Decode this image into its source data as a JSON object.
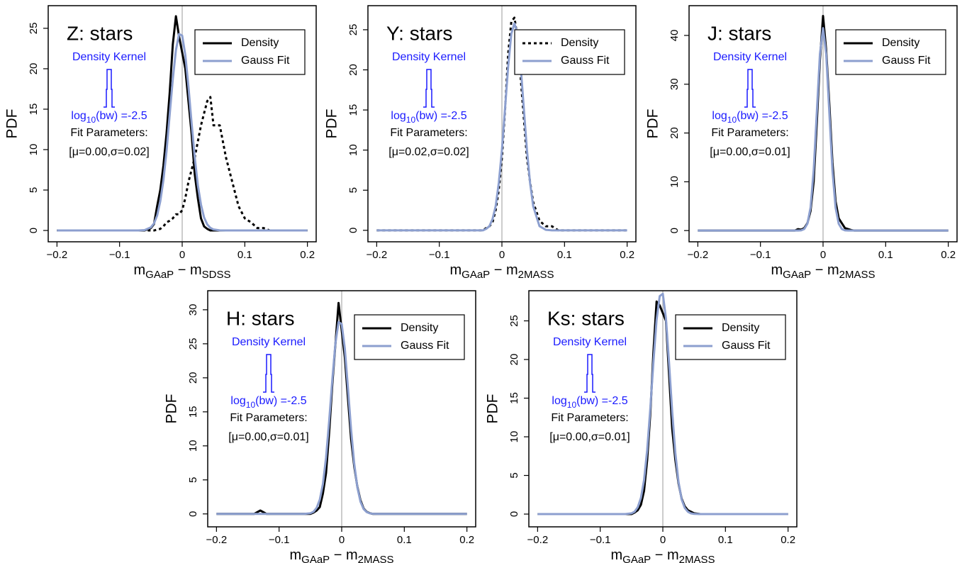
{
  "chart_data": [
    {
      "type": "line",
      "title": "Z: stars",
      "y_label": "PDF",
      "x_label": [
        {
          "text": "m"
        },
        {
          "text": "GAaP",
          "sub": true
        },
        {
          "text": " − m"
        },
        {
          "text": "SDSS",
          "sub": true
        }
      ],
      "xlim": [
        -0.214,
        0.214
      ],
      "ylim": [
        -1.4,
        27.8
      ],
      "xticks": [
        {
          "value": -0.2,
          "label": "−0.2"
        },
        {
          "value": -0.1,
          "label": "−0.1"
        },
        0,
        0.1,
        0.2
      ],
      "yticks": [
        0,
        5,
        10,
        15,
        20,
        25
      ],
      "reference_line_x": 0,
      "reference_color": "#bbbbbb",
      "annotations": {
        "kernel_label": "Density Kernel",
        "bandwidth": [
          {
            "text": "log"
          },
          {
            "text": "10",
            "sub": true
          },
          {
            "text": "(bw) =-2.5"
          }
        ],
        "fit_label": "Fit Parameters:",
        "fit_params": "[μ=0.00,σ=0.02]",
        "kernel_color": "#1a1aff"
      },
      "x": [
        -0.2,
        -0.14,
        -0.13,
        -0.12,
        -0.08,
        -0.07,
        -0.06,
        -0.05,
        -0.045,
        -0.04,
        -0.035,
        -0.03,
        -0.025,
        -0.02,
        -0.015,
        -0.01,
        -0.005,
        0,
        0.005,
        0.01,
        0.015,
        0.02,
        0.025,
        0.03,
        0.035,
        0.04,
        0.045,
        0.05,
        0.06,
        0.07,
        0.08,
        0.09,
        0.1,
        0.11,
        0.12,
        0.13,
        0.14,
        0.2
      ],
      "series": [
        {
          "values": [
            0,
            0,
            0,
            0,
            0,
            0,
            0,
            0,
            0,
            0.1,
            0.2,
            0.5,
            1,
            1.2,
            1.5,
            2,
            2,
            2.5,
            4,
            6,
            7.5,
            9,
            11,
            13,
            14.5,
            16,
            16.5,
            13,
            13,
            9,
            6,
            3,
            1.5,
            1,
            0.3,
            0.3,
            0,
            0
          ],
          "color": "#000000",
          "dash": true
        },
        {
          "name": "Density",
          "color": "#000000",
          "values": [
            0,
            0,
            0,
            0,
            0,
            0,
            0,
            0.3,
            0.8,
            3,
            5,
            8,
            12,
            17,
            23,
            26.5,
            24,
            22,
            20,
            16,
            12,
            7,
            4,
            1.5,
            0.5,
            0.2,
            0,
            0,
            0,
            0,
            0,
            0,
            0,
            0,
            0,
            0,
            0,
            0
          ]
        },
        {
          "name": "Gauss Fit",
          "color": "#8c9fcf",
          "values": [
            0,
            0,
            0,
            0,
            0,
            0,
            0.05,
            0.39,
            0.88,
            1.85,
            3.6,
            6.2,
            9.8,
            14.3,
            18.7,
            22.3,
            24.3,
            24.1,
            21.7,
            17.8,
            13.3,
            9.1,
            5.6,
            3.2,
            1.6,
            0.75,
            0.32,
            0.12,
            0.01,
            0,
            0,
            0,
            0,
            0,
            0,
            0,
            0,
            0
          ]
        }
      ]
    },
    {
      "type": "line",
      "title": "Y: stars",
      "y_label": "PDF",
      "x_label": [
        {
          "text": "m"
        },
        {
          "text": "GAaP",
          "sub": true
        },
        {
          "text": " − m"
        },
        {
          "text": "2MASS",
          "sub": true
        }
      ],
      "xlim": [
        -0.214,
        0.214
      ],
      "ylim": [
        -1.43,
        28.0
      ],
      "xticks": [
        {
          "value": -0.2,
          "label": "−0.2"
        },
        {
          "value": -0.1,
          "label": "−0.1"
        },
        0,
        0.1,
        0.2
      ],
      "yticks": [
        0,
        5,
        10,
        15,
        20,
        25
      ],
      "reference_line_x": 0,
      "reference_color": "#bbbbbb",
      "annotations": {
        "kernel_label": "Density Kernel",
        "bandwidth": [
          {
            "text": "log"
          },
          {
            "text": "10",
            "sub": true
          },
          {
            "text": "(bw) =-2.5"
          }
        ],
        "fit_label": "Fit Parameters:",
        "fit_params": "[μ=0.02,σ=0.02]",
        "kernel_color": "#1a1aff"
      },
      "x": [
        -0.2,
        -0.14,
        -0.13,
        -0.12,
        -0.08,
        -0.07,
        -0.06,
        -0.05,
        -0.045,
        -0.04,
        -0.035,
        -0.03,
        -0.025,
        -0.02,
        -0.015,
        -0.01,
        -0.005,
        0,
        0.005,
        0.01,
        0.015,
        0.02,
        0.025,
        0.03,
        0.035,
        0.04,
        0.045,
        0.05,
        0.06,
        0.07,
        0.08,
        0.09,
        0.1,
        0.11,
        0.12,
        0.13,
        0.14,
        0.2
      ],
      "series": [
        {
          "name": "Density",
          "color": "#000000",
          "dash": true,
          "values": [
            0,
            0,
            0,
            0,
            0,
            0,
            0,
            0,
            0,
            0,
            0,
            0,
            0.3,
            0.5,
            1,
            2.5,
            5,
            9,
            15,
            22,
            26,
            26.5,
            24,
            19,
            14,
            9,
            6,
            3.5,
            1.2,
            0.5,
            0.5,
            0,
            0,
            0,
            0,
            0,
            0,
            0
          ]
        },
        {
          "name": "Gauss Fit",
          "color": "#8c9fcf",
          "values": [
            0,
            0,
            0,
            0,
            0,
            0,
            0,
            0,
            0,
            0,
            0,
            0,
            0.19,
            0.52,
            1.4,
            3.0,
            5.9,
            10,
            15.2,
            20.4,
            24.5,
            25.8,
            24.5,
            20.4,
            15.2,
            10,
            5.9,
            3,
            0.52,
            0.06,
            0,
            0,
            0,
            0,
            0,
            0,
            0,
            0
          ]
        }
      ]
    },
    {
      "type": "line",
      "title": "J: stars",
      "y_label": "PDF",
      "x_label": [
        {
          "text": "m"
        },
        {
          "text": "GAaP",
          "sub": true
        },
        {
          "text": " − m"
        },
        {
          "text": "2MASS",
          "sub": true
        }
      ],
      "xlim": [
        -0.214,
        0.214
      ],
      "ylim": [
        -2.3,
        46.1
      ],
      "xticks": [
        {
          "value": -0.2,
          "label": "−0.2"
        },
        {
          "value": -0.1,
          "label": "−0.1"
        },
        0,
        0.1,
        0.2
      ],
      "yticks": [
        0,
        10,
        20,
        30,
        40
      ],
      "reference_line_x": 0,
      "reference_color": "#bbbbbb",
      "annotations": {
        "kernel_label": "Density Kernel",
        "bandwidth": [
          {
            "text": "log"
          },
          {
            "text": "10",
            "sub": true
          },
          {
            "text": "(bw) =-2.5"
          }
        ],
        "fit_label": "Fit Parameters:",
        "fit_params": "[μ=0.00,σ=0.01]",
        "kernel_color": "#1a1aff"
      },
      "x": [
        -0.2,
        -0.14,
        -0.13,
        -0.12,
        -0.08,
        -0.07,
        -0.06,
        -0.05,
        -0.045,
        -0.04,
        -0.035,
        -0.03,
        -0.025,
        -0.02,
        -0.015,
        -0.01,
        -0.005,
        0,
        0.005,
        0.01,
        0.015,
        0.02,
        0.025,
        0.03,
        0.035,
        0.04,
        0.045,
        0.05,
        0.06,
        0.07,
        0.08,
        0.09,
        0.1,
        0.11,
        0.12,
        0.13,
        0.14,
        0.2
      ],
      "series": [
        {
          "name": "Density",
          "color": "#000000",
          "values": [
            0,
            0,
            0,
            0,
            0,
            0,
            0,
            0,
            0,
            0.3,
            0.2,
            0.5,
            1.5,
            4,
            10,
            22,
            35,
            44,
            37,
            26,
            14,
            6,
            2.5,
            1.5,
            0.5,
            0.3,
            0.1,
            0,
            0,
            0,
            0,
            0,
            0,
            0,
            0,
            0,
            0,
            0
          ]
        },
        {
          "name": "Gauss Fit",
          "color": "#8c9fcf",
          "values": [
            0,
            0,
            0,
            0,
            0,
            0,
            0,
            0,
            0,
            0,
            0.05,
            0.31,
            1.4,
            4.7,
            12.3,
            24.2,
            36.2,
            41.5,
            36.2,
            24.2,
            12.3,
            4.7,
            1.4,
            0.31,
            0.05,
            0,
            0,
            0,
            0,
            0,
            0,
            0,
            0,
            0,
            0,
            0,
            0,
            0
          ]
        }
      ]
    },
    {
      "type": "line",
      "title": "H: stars",
      "y_label": "PDF",
      "x_label": [
        {
          "text": "m"
        },
        {
          "text": "GAaP",
          "sub": true
        },
        {
          "text": " − m"
        },
        {
          "text": "2MASS",
          "sub": true
        }
      ],
      "xlim": [
        -0.214,
        0.214
      ],
      "ylim": [
        -1.9,
        32.8
      ],
      "xticks": [
        {
          "value": -0.2,
          "label": "−0.2"
        },
        {
          "value": -0.1,
          "label": "−0.1"
        },
        0,
        0.1,
        0.2
      ],
      "yticks": [
        0,
        5,
        10,
        15,
        20,
        25,
        30
      ],
      "reference_line_x": 0,
      "reference_color": "#bbbbbb",
      "annotations": {
        "kernel_label": "Density Kernel",
        "bandwidth": [
          {
            "text": "log"
          },
          {
            "text": "10",
            "sub": true
          },
          {
            "text": "(bw) =-2.5"
          }
        ],
        "fit_label": "Fit Parameters:",
        "fit_params": "[μ=0.00,σ=0.01]",
        "kernel_color": "#1a1aff"
      },
      "x": [
        -0.2,
        -0.14,
        -0.13,
        -0.12,
        -0.08,
        -0.07,
        -0.06,
        -0.05,
        -0.045,
        -0.04,
        -0.035,
        -0.03,
        -0.025,
        -0.02,
        -0.015,
        -0.01,
        -0.005,
        0,
        0.005,
        0.01,
        0.015,
        0.02,
        0.025,
        0.03,
        0.035,
        0.04,
        0.045,
        0.05,
        0.06,
        0.07,
        0.08,
        0.09,
        0.1,
        0.11,
        0.12,
        0.13,
        0.14,
        0.2
      ],
      "series": [
        {
          "name": "Density",
          "color": "#000000",
          "values": [
            0,
            0,
            0.5,
            0,
            0,
            0,
            0,
            0,
            0.2,
            0.5,
            1,
            3,
            6,
            12,
            19,
            25,
            31,
            27,
            23,
            17,
            11,
            7,
            4,
            2,
            0.8,
            0.3,
            0.1,
            0,
            0,
            0,
            0,
            0,
            0,
            0,
            0,
            0,
            0,
            0
          ]
        },
        {
          "name": "Gauss Fit",
          "color": "#8c9fcf",
          "values": [
            0,
            0,
            0,
            0,
            0,
            0,
            0,
            0.1,
            0.32,
            0.9,
            2.1,
            4.4,
            8.3,
            13.7,
            19.7,
            25.1,
            28.2,
            27.9,
            24.3,
            18.5,
            12.4,
            7.4,
            3.9,
            1.8,
            0.72,
            0.26,
            0.08,
            0.02,
            0,
            0,
            0,
            0,
            0,
            0,
            0,
            0,
            0,
            0
          ]
        }
      ]
    },
    {
      "type": "line",
      "title": "Ks: stars",
      "y_label": "PDF",
      "x_label": [
        {
          "text": "m"
        },
        {
          "text": "GAaP",
          "sub": true
        },
        {
          "text": " − m"
        },
        {
          "text": "2MASS",
          "sub": true
        }
      ],
      "xlim": [
        -0.214,
        0.214
      ],
      "ylim": [
        -1.65,
        28.9
      ],
      "xticks": [
        {
          "value": -0.2,
          "label": "−0.2"
        },
        {
          "value": -0.1,
          "label": "−0.1"
        },
        0,
        0.1,
        0.2
      ],
      "yticks": [
        0,
        5,
        10,
        15,
        20,
        25
      ],
      "reference_line_x": 0,
      "reference_color": "#bbbbbb",
      "annotations": {
        "kernel_label": "Density Kernel",
        "bandwidth": [
          {
            "text": "log"
          },
          {
            "text": "10",
            "sub": true
          },
          {
            "text": "(bw) =-2.5"
          }
        ],
        "fit_label": "Fit Parameters:",
        "fit_params": "[μ=0.00,σ=0.01]",
        "kernel_color": "#1a1aff"
      },
      "x": [
        -0.2,
        -0.14,
        -0.13,
        -0.12,
        -0.08,
        -0.07,
        -0.06,
        -0.05,
        -0.045,
        -0.04,
        -0.035,
        -0.03,
        -0.025,
        -0.02,
        -0.015,
        -0.01,
        -0.005,
        0,
        0.005,
        0.01,
        0.015,
        0.02,
        0.025,
        0.03,
        0.035,
        0.04,
        0.045,
        0.05,
        0.06,
        0.07,
        0.08,
        0.09,
        0.1,
        0.11,
        0.12,
        0.13,
        0.14,
        0.2
      ],
      "series": [
        {
          "name": "Density",
          "color": "#000000",
          "values": [
            0,
            0,
            0,
            0,
            0,
            0,
            0,
            0,
            0.2,
            0.5,
            1.2,
            3,
            7,
            13,
            21,
            27.5,
            27,
            26,
            25,
            18,
            11,
            7,
            4,
            2,
            1,
            0.5,
            0.3,
            0.1,
            0,
            0,
            0,
            0,
            0,
            0,
            0,
            0,
            0,
            0
          ]
        },
        {
          "name": "Gauss Fit",
          "color": "#8c9fcf",
          "values": [
            0,
            0,
            0,
            0,
            0,
            0,
            0,
            0.1,
            0.32,
            0.9,
            2.1,
            4.4,
            8.3,
            13.7,
            19.7,
            25.1,
            28.2,
            28.5,
            25.3,
            19.5,
            13.2,
            7.9,
            4.2,
            1.9,
            0.8,
            0.3,
            0.09,
            0.02,
            0,
            0,
            0,
            0,
            0,
            0,
            0,
            0,
            0,
            0
          ]
        }
      ]
    }
  ]
}
